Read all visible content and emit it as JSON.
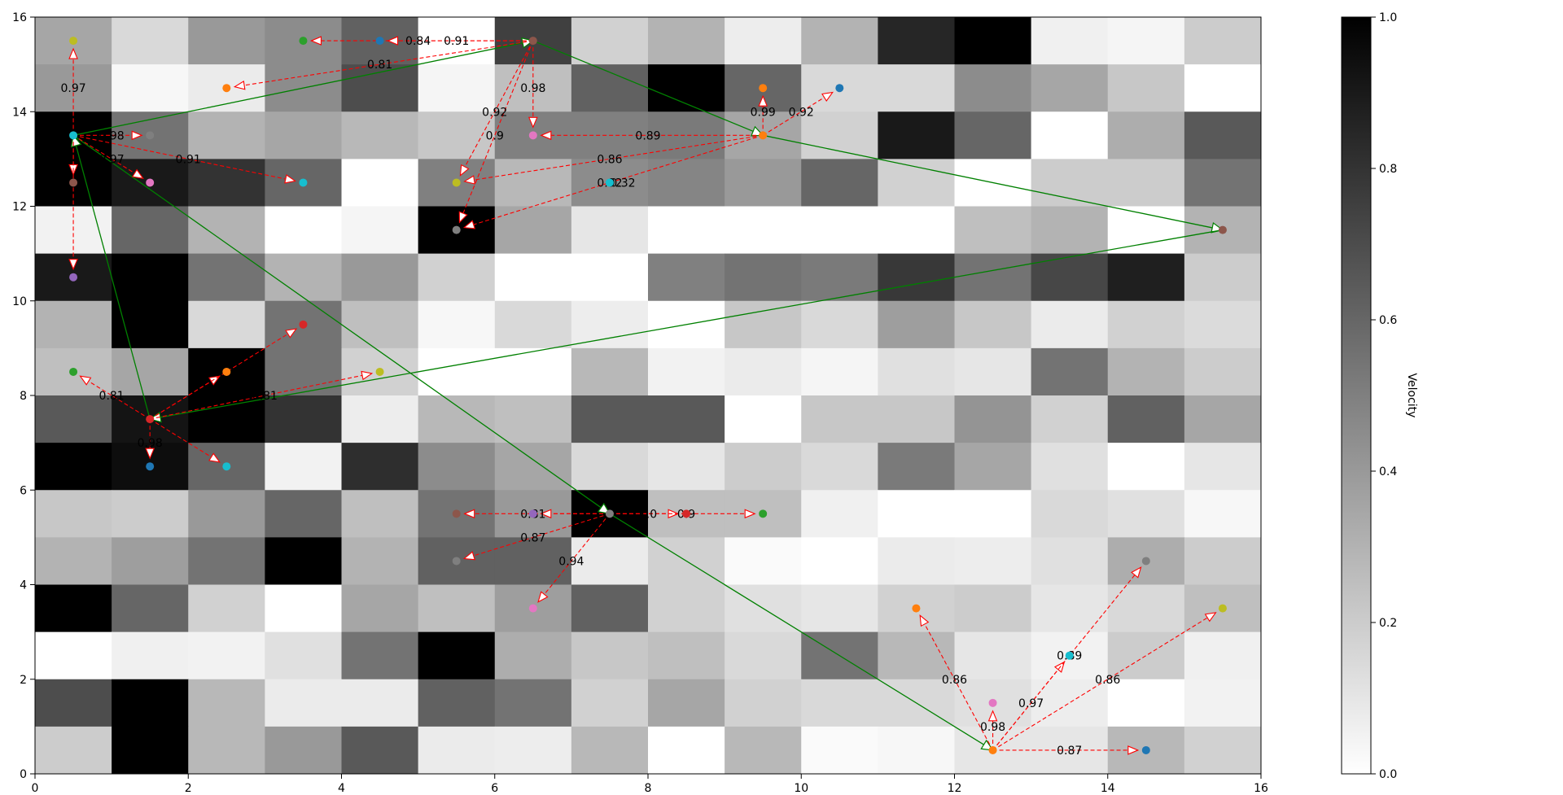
{
  "chart_data": {
    "type": "heatmap",
    "xlim": [
      0,
      16
    ],
    "ylim": [
      0,
      16
    ],
    "x_ticks": [
      "0",
      "2",
      "4",
      "6",
      "8",
      "10",
      "12",
      "14",
      "16"
    ],
    "y_ticks": [
      "0",
      "2",
      "4",
      "6",
      "8",
      "10",
      "12",
      "14",
      "16"
    ],
    "colorbar": {
      "label": "Velocity",
      "range": [
        0,
        1
      ],
      "ticks": [
        "0.0",
        "0.2",
        "0.4",
        "0.6",
        "0.8",
        "1.0"
      ],
      "colormap": "Greys"
    },
    "grid_rows_top_to_bottom": [
      [
        0.35,
        0.15,
        0.4,
        0.45,
        0.62,
        0.0,
        0.75,
        0.18,
        0.3,
        0.07,
        0.3,
        0.85,
        1.0,
        0.06,
        0.04,
        0.2
      ],
      [
        0.4,
        0.03,
        0.08,
        0.45,
        0.7,
        0.04,
        0.25,
        0.62,
        1.0,
        0.6,
        0.15,
        0.15,
        0.45,
        0.35,
        0.22,
        0.0
      ],
      [
        1.0,
        0.55,
        0.3,
        0.35,
        0.28,
        0.22,
        0.5,
        0.5,
        0.52,
        0.35,
        0.18,
        0.9,
        0.6,
        0.0,
        0.32,
        0.65
      ],
      [
        1.0,
        0.9,
        0.8,
        0.6,
        0.0,
        0.5,
        0.28,
        0.45,
        0.48,
        0.4,
        0.6,
        0.18,
        0.0,
        0.2,
        0.2,
        0.55
      ],
      [
        0.05,
        0.6,
        0.3,
        0.0,
        0.04,
        1.0,
        0.35,
        0.1,
        0.0,
        0.0,
        0.0,
        0.0,
        0.25,
        0.3,
        0.0,
        0.3
      ],
      [
        0.9,
        1.0,
        0.55,
        0.3,
        0.4,
        0.18,
        0.0,
        0.0,
        0.5,
        0.55,
        0.52,
        0.78,
        0.55,
        0.72,
        0.88,
        0.2
      ],
      [
        0.3,
        1.0,
        0.15,
        0.55,
        0.25,
        0.03,
        0.15,
        0.07,
        0.0,
        0.22,
        0.15,
        0.38,
        0.22,
        0.08,
        0.18,
        0.14
      ],
      [
        0.25,
        0.35,
        1.0,
        0.55,
        0.18,
        0.0,
        0.0,
        0.28,
        0.05,
        0.08,
        0.04,
        0.12,
        0.1,
        0.55,
        0.3,
        0.2
      ],
      [
        0.65,
        0.92,
        1.0,
        0.8,
        0.07,
        0.28,
        0.25,
        0.65,
        0.65,
        0.0,
        0.22,
        0.22,
        0.42,
        0.18,
        0.62,
        0.35
      ],
      [
        1.0,
        0.95,
        0.6,
        0.05,
        0.82,
        0.45,
        0.35,
        0.15,
        0.1,
        0.2,
        0.15,
        0.52,
        0.35,
        0.12,
        0.0,
        0.1
      ],
      [
        0.22,
        0.2,
        0.4,
        0.6,
        0.25,
        0.55,
        0.4,
        1.0,
        0.25,
        0.25,
        0.06,
        0.0,
        0.0,
        0.15,
        0.12,
        0.03
      ],
      [
        0.3,
        0.38,
        0.55,
        1.0,
        0.3,
        0.62,
        0.62,
        0.08,
        0.18,
        0.02,
        0.0,
        0.08,
        0.07,
        0.12,
        0.32,
        0.2
      ],
      [
        1.0,
        0.6,
        0.18,
        0.0,
        0.35,
        0.25,
        0.38,
        0.62,
        0.18,
        0.12,
        0.1,
        0.18,
        0.2,
        0.1,
        0.15,
        0.25
      ],
      [
        0.0,
        0.06,
        0.05,
        0.12,
        0.55,
        1.0,
        0.32,
        0.22,
        0.25,
        0.15,
        0.55,
        0.28,
        0.1,
        0.05,
        0.2,
        0.06
      ],
      [
        0.7,
        1.0,
        0.28,
        0.08,
        0.08,
        0.62,
        0.55,
        0.18,
        0.35,
        0.18,
        0.15,
        0.15,
        0.12,
        0.07,
        0.0,
        0.05
      ],
      [
        0.2,
        1.0,
        0.28,
        0.4,
        0.65,
        0.08,
        0.07,
        0.28,
        0.0,
        0.28,
        0.02,
        0.03,
        0.1,
        0.1,
        0.28,
        0.18
      ]
    ],
    "points": [
      {
        "x": 0.5,
        "y": 15.5,
        "color": "#bcbd22"
      },
      {
        "x": 3.5,
        "y": 15.5,
        "color": "#2ca02c"
      },
      {
        "x": 4.5,
        "y": 15.5,
        "color": "#1f77b4"
      },
      {
        "x": 6.5,
        "y": 15.5,
        "color": "#8c564b"
      },
      {
        "x": 2.5,
        "y": 14.5,
        "color": "#ff7f0e"
      },
      {
        "x": 9.5,
        "y": 14.5,
        "color": "#ff7f0e"
      },
      {
        "x": 10.5,
        "y": 14.5,
        "color": "#1f77b4"
      },
      {
        "x": 0.5,
        "y": 13.5,
        "color": "#17becf"
      },
      {
        "x": 1.5,
        "y": 13.5,
        "color": "#7f7f7f"
      },
      {
        "x": 6.5,
        "y": 13.5,
        "color": "#e377c2"
      },
      {
        "x": 9.5,
        "y": 13.5,
        "color": "#ff7f0e"
      },
      {
        "x": 0.5,
        "y": 12.5,
        "color": "#8c564b"
      },
      {
        "x": 1.5,
        "y": 12.5,
        "color": "#e377c2"
      },
      {
        "x": 3.5,
        "y": 12.5,
        "color": "#17becf"
      },
      {
        "x": 5.5,
        "y": 12.5,
        "color": "#bcbd22"
      },
      {
        "x": 7.5,
        "y": 12.5,
        "color": "#17becf"
      },
      {
        "x": 5.5,
        "y": 11.5,
        "color": "#7f7f7f"
      },
      {
        "x": 15.5,
        "y": 11.5,
        "color": "#8c564b"
      },
      {
        "x": 0.5,
        "y": 10.5,
        "color": "#9467bd"
      },
      {
        "x": 3.5,
        "y": 9.5,
        "color": "#d62728"
      },
      {
        "x": 0.5,
        "y": 8.5,
        "color": "#2ca02c"
      },
      {
        "x": 2.5,
        "y": 8.5,
        "color": "#ff7f0e"
      },
      {
        "x": 4.5,
        "y": 8.5,
        "color": "#bcbd22"
      },
      {
        "x": 1.5,
        "y": 7.5,
        "color": "#d62728"
      },
      {
        "x": 1.5,
        "y": 6.5,
        "color": "#1f77b4"
      },
      {
        "x": 2.5,
        "y": 6.5,
        "color": "#17becf"
      },
      {
        "x": 5.5,
        "y": 5.5,
        "color": "#8c564b"
      },
      {
        "x": 6.5,
        "y": 5.5,
        "color": "#9467bd"
      },
      {
        "x": 7.5,
        "y": 5.5,
        "color": "#7f7f7f"
      },
      {
        "x": 8.5,
        "y": 5.5,
        "color": "#d62728"
      },
      {
        "x": 9.5,
        "y": 5.5,
        "color": "#2ca02c"
      },
      {
        "x": 5.5,
        "y": 4.5,
        "color": "#7f7f7f"
      },
      {
        "x": 14.5,
        "y": 4.5,
        "color": "#7f7f7f"
      },
      {
        "x": 6.5,
        "y": 3.5,
        "color": "#e377c2"
      },
      {
        "x": 11.5,
        "y": 3.5,
        "color": "#ff7f0e"
      },
      {
        "x": 15.5,
        "y": 3.5,
        "color": "#bcbd22"
      },
      {
        "x": 13.5,
        "y": 2.5,
        "color": "#17becf"
      },
      {
        "x": 12.5,
        "y": 1.5,
        "color": "#e377c2"
      },
      {
        "x": 12.5,
        "y": 0.5,
        "color": "#ff7f0e"
      },
      {
        "x": 14.5,
        "y": 0.5,
        "color": "#1f77b4"
      }
    ],
    "path_green": [
      [
        0.5,
        13.5
      ],
      [
        6.5,
        15.5
      ],
      [
        9.5,
        13.5
      ],
      [
        15.5,
        11.5
      ],
      [
        1.5,
        7.5
      ],
      [
        0.5,
        13.5
      ],
      [
        7.5,
        5.5
      ],
      [
        12.5,
        0.5
      ]
    ],
    "path_color": "#008000",
    "arrow_color": "#ff0000",
    "arrows": [
      {
        "from": [
          0.5,
          13.5
        ],
        "to": [
          0.5,
          15.5
        ],
        "label": "0.97"
      },
      {
        "from": [
          0.5,
          13.5
        ],
        "to": [
          1.5,
          13.5
        ],
        "label": "0.98"
      },
      {
        "from": [
          0.5,
          13.5
        ],
        "to": [
          1.5,
          12.5
        ],
        "label": "0.97"
      },
      {
        "from": [
          0.5,
          13.5
        ],
        "to": [
          3.5,
          12.5
        ],
        "label": "0.91"
      },
      {
        "from": [
          0.5,
          13.5
        ],
        "to": [
          0.5,
          12.5
        ],
        "label": ""
      },
      {
        "from": [
          0.5,
          13.5
        ],
        "to": [
          0.5,
          10.5
        ],
        "label": ""
      },
      {
        "from": [
          6.5,
          15.5
        ],
        "to": [
          3.5,
          15.5
        ],
        "label": "0.84"
      },
      {
        "from": [
          6.5,
          15.5
        ],
        "to": [
          4.5,
          15.5
        ],
        "label": "0.91"
      },
      {
        "from": [
          6.5,
          15.5
        ],
        "to": [
          2.5,
          14.5
        ],
        "label": "0.81"
      },
      {
        "from": [
          6.5,
          15.5
        ],
        "to": [
          6.5,
          13.5
        ],
        "label": "0.98"
      },
      {
        "from": [
          6.5,
          15.5
        ],
        "to": [
          5.5,
          12.5
        ],
        "label": "0.92"
      },
      {
        "from": [
          6.5,
          15.5
        ],
        "to": [
          5.5,
          11.5
        ],
        "label": "0.9"
      },
      {
        "from": [
          9.5,
          13.5
        ],
        "to": [
          9.5,
          14.5
        ],
        "label": "0.99"
      },
      {
        "from": [
          9.5,
          13.5
        ],
        "to": [
          10.5,
          14.5
        ],
        "label": "0.92"
      },
      {
        "from": [
          9.5,
          13.5
        ],
        "to": [
          6.5,
          13.5
        ],
        "label": "0.89"
      },
      {
        "from": [
          9.5,
          13.5
        ],
        "to": [
          5.5,
          12.5
        ],
        "label": "0.86"
      },
      {
        "from": [
          9.5,
          13.5
        ],
        "to": [
          5.5,
          11.5
        ],
        "label": "0.92"
      },
      {
        "from": [
          1.5,
          7.5
        ],
        "to": [
          0.5,
          8.5
        ],
        "label": "0.81"
      },
      {
        "from": [
          1.5,
          7.5
        ],
        "to": [
          2.5,
          8.5
        ],
        "label": ""
      },
      {
        "from": [
          1.5,
          7.5
        ],
        "to": [
          3.5,
          9.5
        ],
        "label": ""
      },
      {
        "from": [
          1.5,
          7.5
        ],
        "to": [
          4.5,
          8.5
        ],
        "label": "0.81"
      },
      {
        "from": [
          1.5,
          7.5
        ],
        "to": [
          1.5,
          6.5
        ],
        "label": "0.98"
      },
      {
        "from": [
          1.5,
          7.5
        ],
        "to": [
          2.5,
          6.5
        ],
        "label": ""
      },
      {
        "from": [
          7.5,
          5.5
        ],
        "to": [
          5.5,
          5.5
        ],
        "label": "0.81"
      },
      {
        "from": [
          7.5,
          5.5
        ],
        "to": [
          6.5,
          5.5
        ],
        "label": ""
      },
      {
        "from": [
          7.5,
          5.5
        ],
        "to": [
          8.5,
          5.5
        ],
        "label": "1.0"
      },
      {
        "from": [
          7.5,
          5.5
        ],
        "to": [
          9.5,
          5.5
        ],
        "label": "0.9"
      },
      {
        "from": [
          7.5,
          5.5
        ],
        "to": [
          5.5,
          4.5
        ],
        "label": "0.87"
      },
      {
        "from": [
          7.5,
          5.5
        ],
        "to": [
          6.5,
          3.5
        ],
        "label": "0.94"
      },
      {
        "from": [
          12.5,
          0.5
        ],
        "to": [
          11.5,
          3.5
        ],
        "label": "0.86"
      },
      {
        "from": [
          12.5,
          0.5
        ],
        "to": [
          12.5,
          1.5
        ],
        "label": "0.98"
      },
      {
        "from": [
          12.5,
          0.5
        ],
        "to": [
          13.5,
          2.5
        ],
        "label": "0.97"
      },
      {
        "from": [
          12.5,
          0.5
        ],
        "to": [
          14.5,
          4.5
        ],
        "label": "0.89"
      },
      {
        "from": [
          12.5,
          0.5
        ],
        "to": [
          15.5,
          3.5
        ],
        "label": "0.86"
      },
      {
        "from": [
          12.5,
          0.5
        ],
        "to": [
          14.5,
          0.5
        ],
        "label": "0.87"
      }
    ],
    "extra_labels": [
      {
        "x": 7.5,
        "y": 12.5,
        "text": "0.32"
      }
    ]
  }
}
